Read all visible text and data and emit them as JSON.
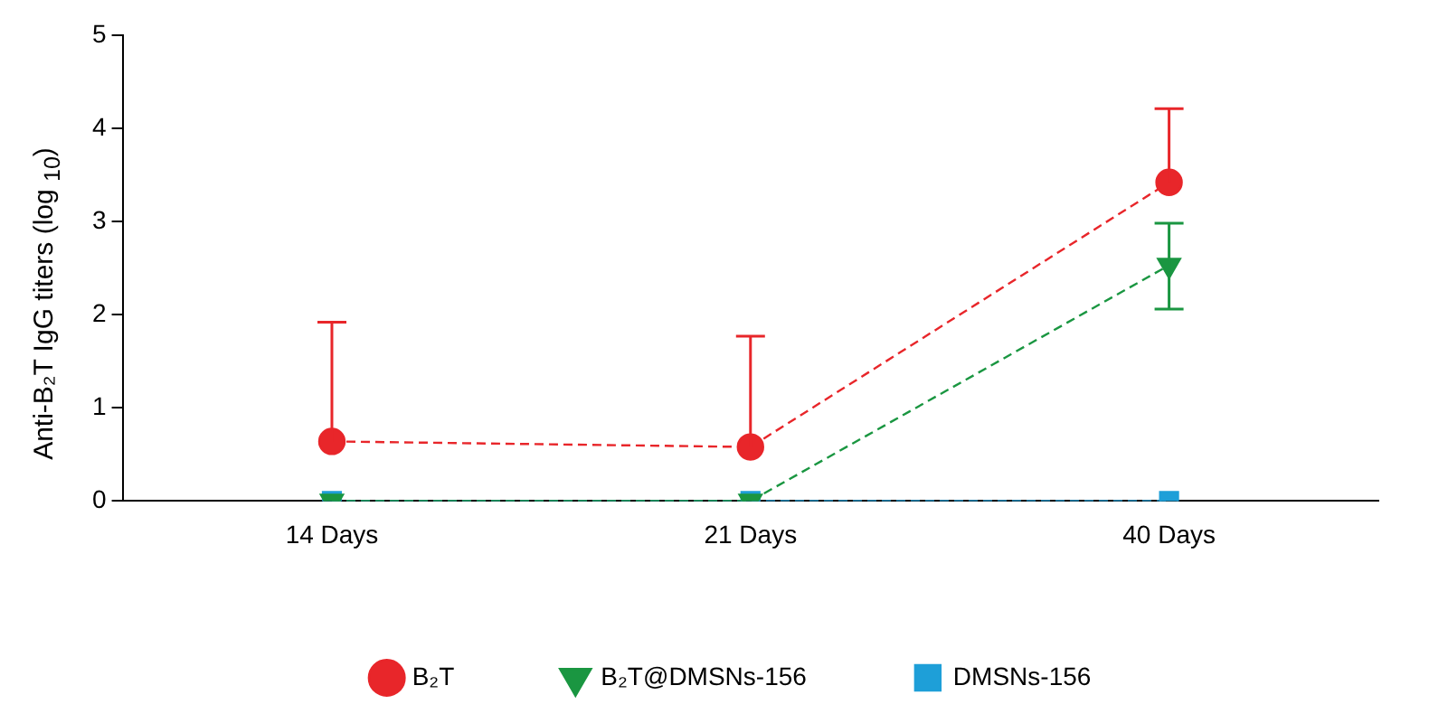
{
  "chart_data": {
    "type": "line",
    "ylabel": "Anti-B₂T IgG titers (log $_{10}$)",
    "categories": [
      "14 Days",
      "21 Days",
      "40 Days"
    ],
    "ylim": [
      0,
      5
    ],
    "yticks": [
      0,
      1,
      2,
      3,
      4,
      5
    ],
    "grid": false,
    "legend": "bottom",
    "line_style": "dashed",
    "series": [
      {
        "name": "B₂T",
        "color": "#e8262a",
        "marker": "circle",
        "values": [
          0.64,
          0.58,
          3.42
        ],
        "errors": [
          [
            0.64,
            1.92
          ],
          [
            0.58,
            1.77
          ],
          [
            3.42,
            4.21
          ]
        ]
      },
      {
        "name": "B₂T@DMSNs-156",
        "color": "#1a9641",
        "marker": "triangle",
        "values": [
          0,
          0,
          2.53
        ],
        "errors": [
          null,
          null,
          [
            2.06,
            2.98
          ]
        ]
      },
      {
        "name": "DMSNs-156",
        "color": "#1e9fd8",
        "marker": "square",
        "values": [
          0,
          0,
          0
        ]
      }
    ]
  }
}
